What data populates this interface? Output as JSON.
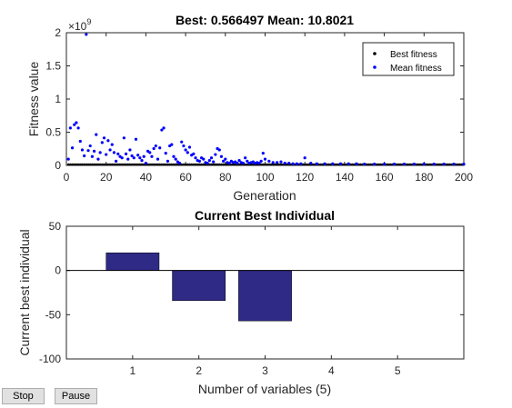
{
  "controls": {
    "stop_label": "Stop",
    "pause_label": "Pause"
  },
  "colors": {
    "best": "#000000",
    "mean": "#0000ff",
    "bar": "#2e2a86"
  },
  "chart_data": [
    {
      "type": "scatter",
      "title": "Best: 0.566497 Mean: 10.8021",
      "xlabel": "Generation",
      "ylabel": "Fitness value",
      "y_multiplier": "×10",
      "y_exponent": "9",
      "xlim": [
        0,
        200
      ],
      "ylim": [
        0,
        2
      ],
      "xticks": [
        0,
        20,
        40,
        60,
        80,
        100,
        120,
        140,
        160,
        180,
        200
      ],
      "yticks": [
        0,
        0.5,
        1,
        1.5,
        2
      ],
      "legend_position": "top-right",
      "series": [
        {
          "name": "Best fitness",
          "marker": "dot",
          "color": "#000000",
          "constant_value": 0,
          "x_range": [
            1,
            200
          ]
        },
        {
          "name": "Mean fitness",
          "marker": "dot",
          "color": "#0000ff",
          "points": [
            [
              1,
              0.08
            ],
            [
              2,
              0.55
            ],
            [
              3,
              0.25
            ],
            [
              4,
              0.6
            ],
            [
              5,
              0.63
            ],
            [
              6,
              0.55
            ],
            [
              7,
              0.35
            ],
            [
              8,
              0.22
            ],
            [
              9,
              0.13
            ],
            [
              10,
              1.96
            ],
            [
              11,
              0.21
            ],
            [
              12,
              0.28
            ],
            [
              13,
              0.12
            ],
            [
              14,
              0.2
            ],
            [
              15,
              0.45
            ],
            [
              16,
              0.08
            ],
            [
              17,
              0.18
            ],
            [
              18,
              0.33
            ],
            [
              19,
              0.4
            ],
            [
              20,
              0.15
            ],
            [
              21,
              0.36
            ],
            [
              22,
              0.22
            ],
            [
              23,
              0.3
            ],
            [
              24,
              0.18
            ],
            [
              25,
              0.05
            ],
            [
              26,
              0.16
            ],
            [
              27,
              0.12
            ],
            [
              28,
              0.1
            ],
            [
              29,
              0.4
            ],
            [
              30,
              0.16
            ],
            [
              31,
              0.08
            ],
            [
              32,
              0.22
            ],
            [
              33,
              0.13
            ],
            [
              34,
              0.1
            ],
            [
              35,
              0.38
            ],
            [
              36,
              0.14
            ],
            [
              37,
              0.1
            ],
            [
              38,
              0.06
            ],
            [
              39,
              0.12
            ],
            [
              40,
              0.02
            ],
            [
              41,
              0.2
            ],
            [
              42,
              0.18
            ],
            [
              43,
              0.12
            ],
            [
              44,
              0.24
            ],
            [
              45,
              0.28
            ],
            [
              46,
              0.08
            ],
            [
              47,
              0.25
            ],
            [
              48,
              0.52
            ],
            [
              49,
              0.55
            ],
            [
              50,
              0.17
            ],
            [
              51,
              0.05
            ],
            [
              52,
              0.28
            ],
            [
              53,
              0.3
            ],
            [
              54,
              0.12
            ],
            [
              55,
              0.08
            ],
            [
              56,
              0.04
            ],
            [
              57,
              0.02
            ],
            [
              58,
              0.34
            ],
            [
              59,
              0.28
            ],
            [
              60,
              0.22
            ],
            [
              61,
              0.18
            ],
            [
              62,
              0.26
            ],
            [
              63,
              0.14
            ],
            [
              64,
              0.16
            ],
            [
              65,
              0.1
            ],
            [
              66,
              0.06
            ],
            [
              67,
              0.05
            ],
            [
              68,
              0.1
            ],
            [
              69,
              0.08
            ],
            [
              70,
              0.03
            ],
            [
              71,
              0.02
            ],
            [
              72,
              0.06
            ],
            [
              73,
              0.1
            ],
            [
              74,
              0.04
            ],
            [
              75,
              0.15
            ],
            [
              76,
              0.24
            ],
            [
              77,
              0.22
            ],
            [
              78,
              0.12
            ],
            [
              79,
              0.05
            ],
            [
              80,
              0.08
            ],
            [
              81,
              0.03
            ],
            [
              82,
              0.02
            ],
            [
              83,
              0.05
            ],
            [
              84,
              0.03
            ],
            [
              85,
              0.04
            ],
            [
              86,
              0.02
            ],
            [
              87,
              0.06
            ],
            [
              88,
              0.03
            ],
            [
              89,
              0.02
            ],
            [
              90,
              0.1
            ],
            [
              91,
              0.05
            ],
            [
              92,
              0.02
            ],
            [
              93,
              0.03
            ],
            [
              94,
              0.04
            ],
            [
              95,
              0.02
            ],
            [
              96,
              0.03
            ],
            [
              97,
              0.02
            ],
            [
              98,
              0.05
            ],
            [
              99,
              0.17
            ],
            [
              100,
              0.08
            ],
            [
              102,
              0.05
            ],
            [
              104,
              0.03
            ],
            [
              106,
              0.03
            ],
            [
              108,
              0.04
            ],
            [
              110,
              0.02
            ],
            [
              112,
              0.02
            ],
            [
              114,
              0.01
            ],
            [
              116,
              0.01
            ],
            [
              118,
              0.01
            ],
            [
              120,
              0.1
            ],
            [
              123,
              0.02
            ],
            [
              126,
              0.01
            ],
            [
              130,
              0.01
            ],
            [
              134,
              0.01
            ],
            [
              138,
              0.01
            ],
            [
              142,
              0.01
            ],
            [
              146,
              0.01
            ],
            [
              150,
              0.005
            ],
            [
              155,
              0.005
            ],
            [
              160,
              0.005
            ],
            [
              165,
              0.005
            ],
            [
              170,
              0.005
            ],
            [
              175,
              0.005
            ],
            [
              180,
              0.005
            ],
            [
              185,
              0.005
            ],
            [
              190,
              0.005
            ],
            [
              195,
              0.005
            ],
            [
              200,
              0.005
            ]
          ]
        }
      ]
    },
    {
      "type": "bar",
      "title": "Current Best Individual",
      "xlabel": "Number of variables (5)",
      "ylabel": "Current best individual",
      "categories": [
        "1",
        "2",
        "3",
        "4",
        "5"
      ],
      "values": [
        20,
        -34,
        -57,
        0,
        0
      ],
      "ylim": [
        -100,
        50
      ],
      "xlim": [
        0,
        6
      ],
      "yticks": [
        -100,
        -50,
        0,
        50
      ],
      "zero_line": true
    }
  ]
}
